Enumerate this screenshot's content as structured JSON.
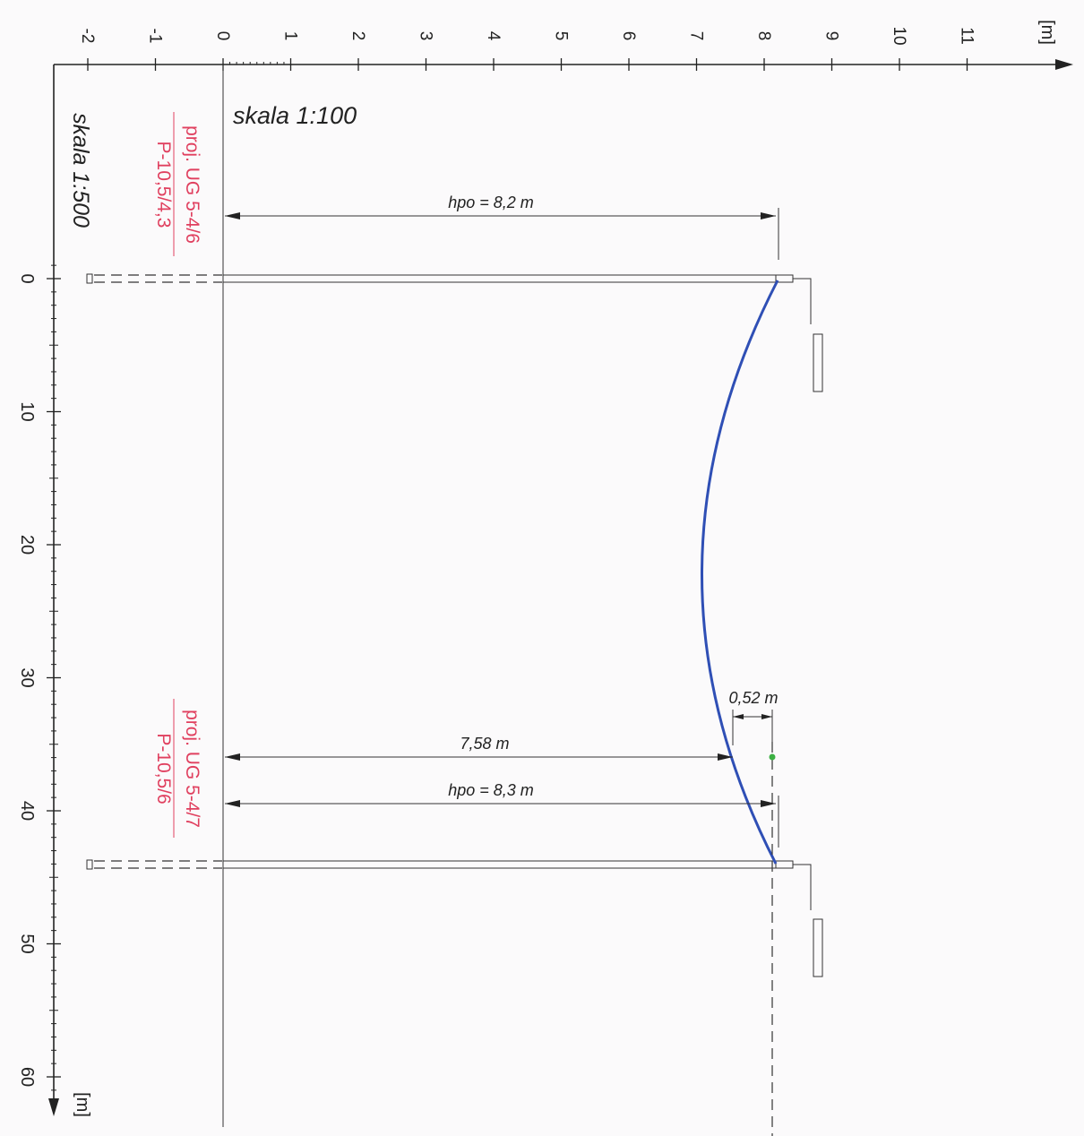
{
  "top_axis": {
    "unit": "[m]",
    "ticks": [
      "-2",
      "-1",
      "0",
      "1",
      "2",
      "3",
      "4",
      "5",
      "6",
      "7",
      "8",
      "9",
      "10",
      "11"
    ]
  },
  "left_axis": {
    "unit": "[m]",
    "ticks": [
      "0",
      "10",
      "20",
      "30",
      "40",
      "50",
      "60"
    ]
  },
  "scales": {
    "horizontal": "skala 1:100",
    "vertical": "skala 1:500"
  },
  "poles": [
    {
      "line1": "proj. UG 5-4/6",
      "line2": "P-10,5/4,3",
      "position_m": 0
    },
    {
      "line1": "proj. UG 5-4/7",
      "line2": "P-10,5/6",
      "position_m": 44
    }
  ],
  "dimensions": {
    "hpo_1": "hpo = 8,2 m",
    "hpo_2": "hpo = 8,3 m",
    "clearance": "7,58 m",
    "sag": "0,52 m"
  },
  "colors": {
    "conductor": "#2f4fb5",
    "annotation": "#e0405f",
    "marker": "#3cb043"
  }
}
